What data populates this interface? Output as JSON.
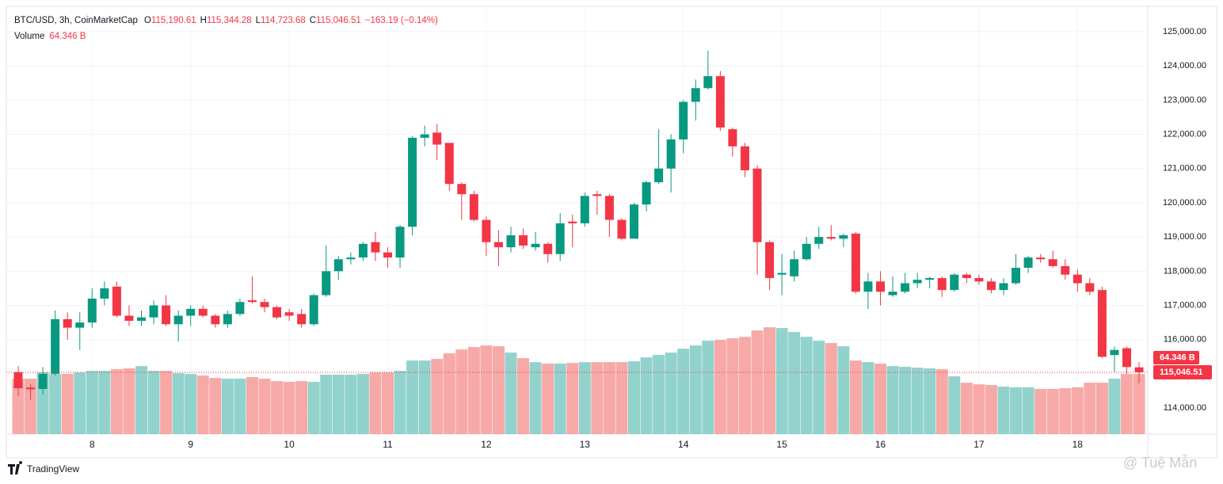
{
  "header": {
    "symbol": "BTC/USD, 3h, CoinMarketCap",
    "ohlc": [
      {
        "label": "O",
        "value": "115,190.61"
      },
      {
        "label": "H",
        "value": "115,344.28"
      },
      {
        "label": "L",
        "value": "114,723.68"
      },
      {
        "label": "C",
        "value": "115,046.51"
      }
    ],
    "change": "−163.19 (−0.14%)",
    "volume_label": "Volume",
    "volume_value": "64.346 B"
  },
  "footer": {
    "brand": "TradingView",
    "watermark": "@ Tuệ Mẫn"
  },
  "chart_data": {
    "type": "candlestick",
    "up_color": "#089981",
    "down_color": "#f23645",
    "up_volume_color": "#92d2cc",
    "down_volume_color": "#f7a9a7",
    "grid": true,
    "x": [
      null,
      null,
      null,
      null,
      null,
      null,
      "8",
      null,
      null,
      null,
      null,
      null,
      null,
      null,
      "9",
      null,
      null,
      null,
      null,
      null,
      null,
      null,
      "10",
      null,
      null,
      null,
      null,
      null,
      null,
      null,
      "11",
      null,
      null,
      null,
      null,
      null,
      null,
      null,
      "12",
      null,
      null,
      null,
      null,
      null,
      null,
      null,
      "13",
      null,
      null,
      null,
      null,
      null,
      null,
      null,
      "14",
      null,
      null,
      null,
      null,
      null,
      null,
      null,
      "15",
      null,
      null,
      null,
      null,
      null,
      null,
      null,
      "16",
      null,
      null,
      null,
      null,
      null,
      null,
      null,
      "17",
      null,
      null,
      null,
      null,
      null,
      null,
      null,
      "18",
      null,
      null,
      null,
      null,
      null
    ],
    "open": [
      115050,
      114600,
      114560,
      115000,
      116600,
      116350,
      116500,
      117200,
      117550,
      116700,
      116550,
      116650,
      117000,
      116450,
      116700,
      116900,
      116700,
      116450,
      116750,
      117150,
      117100,
      116950,
      116800,
      116750,
      116450,
      117300,
      118000,
      118350,
      118400,
      118850,
      118550,
      118400,
      119300,
      121900,
      122050,
      121750,
      120550,
      120250,
      119500,
      118850,
      118700,
      119050,
      118700,
      118800,
      118500,
      119450,
      119400,
      120250,
      120200,
      119500,
      118950,
      119950,
      120600,
      121000,
      121850,
      122950,
      123350,
      123700,
      122150,
      121650,
      121000,
      118850,
      117900,
      117850,
      118350,
      118800,
      119000,
      118950,
      119100,
      117400,
      117700,
      117300,
      117400,
      117650,
      117750,
      117800,
      117450,
      117900,
      117800,
      117700,
      117450,
      117650,
      118100,
      118400,
      118350,
      118150,
      117900,
      117650,
      117450,
      115550,
      115750,
      115190.61
    ],
    "high": [
      115230,
      114700,
      115200,
      116850,
      116800,
      116800,
      117500,
      117700,
      117700,
      117000,
      116850,
      117150,
      117300,
      116850,
      117000,
      117000,
      116750,
      116850,
      117200,
      117850,
      117200,
      117000,
      116900,
      116900,
      117350,
      118750,
      118450,
      118550,
      118850,
      119150,
      118700,
      119350,
      121950,
      122250,
      122300,
      121750,
      120600,
      120350,
      119600,
      119200,
      119300,
      119250,
      119150,
      118850,
      119700,
      119650,
      120300,
      120350,
      120250,
      119550,
      120000,
      120650,
      122150,
      122000,
      123000,
      123600,
      124450,
      123850,
      122200,
      121750,
      121100,
      118900,
      118500,
      118600,
      119000,
      119300,
      119350,
      119100,
      119150,
      117950,
      118000,
      117850,
      117950,
      117950,
      117850,
      117850,
      117950,
      117950,
      117900,
      117800,
      117800,
      118500,
      118450,
      118500,
      118600,
      118350,
      118050,
      117800,
      117550,
      115800,
      115800,
      115344.28
    ],
    "low": [
      114350,
      114250,
      114400,
      114950,
      116000,
      115700,
      116350,
      117000,
      116650,
      116400,
      116400,
      116450,
      116400,
      115950,
      116400,
      116650,
      116350,
      116350,
      116700,
      117050,
      116800,
      116600,
      116550,
      116350,
      116400,
      117250,
      117750,
      118200,
      118300,
      118300,
      118100,
      118100,
      119050,
      121650,
      121250,
      120350,
      119500,
      119450,
      118450,
      118150,
      118550,
      118650,
      118600,
      118250,
      118300,
      118700,
      119300,
      119650,
      119000,
      118900,
      118950,
      119750,
      120550,
      120300,
      121450,
      122400,
      123300,
      122100,
      121350,
      120750,
      117900,
      117450,
      117300,
      117700,
      118300,
      118650,
      118900,
      118700,
      117350,
      116900,
      117000,
      117250,
      117350,
      117500,
      117500,
      117250,
      117400,
      117650,
      117600,
      117350,
      117300,
      117600,
      117950,
      118250,
      118100,
      117750,
      117400,
      117300,
      115450,
      115050,
      115000,
      114723.68
    ],
    "close": [
      114580,
      114550,
      115000,
      116600,
      116350,
      116500,
      117200,
      117500,
      116700,
      116550,
      116650,
      117000,
      116450,
      116700,
      116900,
      116700,
      116450,
      116750,
      117100,
      117100,
      116950,
      116650,
      116700,
      116450,
      117300,
      118000,
      118350,
      118400,
      118800,
      118550,
      118400,
      119300,
      121900,
      122000,
      121700,
      120550,
      120250,
      119500,
      118850,
      118700,
      119050,
      118750,
      118800,
      118500,
      119400,
      119400,
      120200,
      120200,
      119500,
      118950,
      119950,
      120600,
      121000,
      121850,
      122950,
      123350,
      123700,
      122200,
      121650,
      120950,
      118850,
      117800,
      117950,
      118350,
      118800,
      119000,
      118950,
      119050,
      117400,
      117700,
      117400,
      117400,
      117650,
      117750,
      117800,
      117450,
      117900,
      117800,
      117700,
      117450,
      117650,
      118100,
      118400,
      118350,
      118150,
      117900,
      117650,
      117400,
      115500,
      115700,
      115200,
      115046.51
    ],
    "volume": [
      59.3,
      59.3,
      66.0,
      64.3,
      64.3,
      66.0,
      67.7,
      67.7,
      69.4,
      70.3,
      72.8,
      67.7,
      67.7,
      65.2,
      64.3,
      62.7,
      60.1,
      59.3,
      59.3,
      61.0,
      59.3,
      56.7,
      55.9,
      56.7,
      55.9,
      63.5,
      63.5,
      63.5,
      64.3,
      66.0,
      66.0,
      67.7,
      78.7,
      78.7,
      80.4,
      86.4,
      90.6,
      93.1,
      94.8,
      94.0,
      87.2,
      81.3,
      77.0,
      75.4,
      75.4,
      76.2,
      77.0,
      77.0,
      77.0,
      77.0,
      77.9,
      82.1,
      84.7,
      87.2,
      91.4,
      94.8,
      99.9,
      100.8,
      102.5,
      104.1,
      110.9,
      114.3,
      113.5,
      109.2,
      104.1,
      99.9,
      97.4,
      94.0,
      78.7,
      77.0,
      75.4,
      72.8,
      72.0,
      71.1,
      70.3,
      69.4,
      61.8,
      55.0,
      53.3,
      52.5,
      50.8,
      50.0,
      50.0,
      48.3,
      48.3,
      49.1,
      50.0,
      55.0,
      55.0,
      59.3,
      64.3,
      64.346
    ],
    "ylim": [
      113240,
      125694
    ],
    "yticks": [
      {
        "value": 114000,
        "label": "114,000.00"
      },
      {
        "value": 115000,
        "label": "115,000.00"
      },
      {
        "value": 116000,
        "label": "116,000.00"
      },
      {
        "value": 117000,
        "label": "117,000.00"
      },
      {
        "value": 118000,
        "label": "118,000.00"
      },
      {
        "value": 119000,
        "label": "119,000.00"
      },
      {
        "value": 120000,
        "label": "120,000.00"
      },
      {
        "value": 121000,
        "label": "121,000.00"
      },
      {
        "value": 122000,
        "label": "122,000.00"
      },
      {
        "value": 123000,
        "label": "123,000.00"
      },
      {
        "value": 124000,
        "label": "124,000.00"
      },
      {
        "value": 125000,
        "label": "125,000.00"
      }
    ],
    "y2lim": [
      0,
      456
    ],
    "last_price_label": "115,046.51",
    "last_volume_label": "64.346 B"
  }
}
